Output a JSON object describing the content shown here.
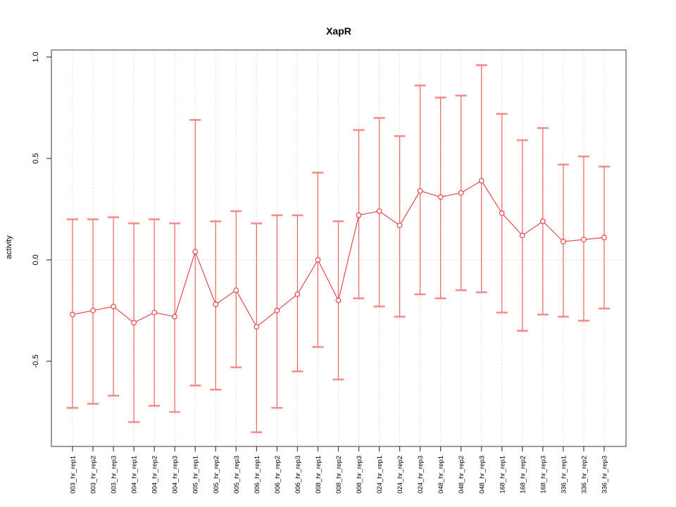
{
  "title": "XapR",
  "chart_data": {
    "type": "line",
    "title": "XapR",
    "xlabel": "",
    "ylabel": "activity",
    "ylim": [
      -0.92,
      1.04
    ],
    "yticks": [
      "1.0",
      "0.5",
      "0.0",
      "-0.5"
    ],
    "ytick_values": [
      1.0,
      0.5,
      0.0,
      -0.5
    ],
    "legend": "none",
    "grid": "vertical dashed gridline at every category; dotted horizontal line at y=0",
    "marker": "open-circle",
    "error_bars": true,
    "colors": {
      "series": "#e63939",
      "error_line": "rgba(232,60,60,0.8)",
      "error_cap": "rgba(246,130,130,0.9)",
      "gridline": "#dcdcdc",
      "zero_line": "#d8d8d8",
      "frame": "#7a7a7a",
      "tick": "#404040",
      "text": "#000000"
    },
    "categories": [
      "003_hr_rep1",
      "003_hr_rep2",
      "003_hr_rep3",
      "004_hr_rep1",
      "004_hr_rep2",
      "004_hr_rep3",
      "005_hr_rep1",
      "005_hr_rep2",
      "005_hr_rep3",
      "006_hr_rep1",
      "006_hr_rep2",
      "006_hr_rep3",
      "008_hr_rep1",
      "008_hr_rep2",
      "008_hr_rep3",
      "024_hr_rep1",
      "024_hr_rep2",
      "024_hr_rep3",
      "048_hr_rep1",
      "048_hr_rep2",
      "048_hr_rep3",
      "168_hr_rep1",
      "168_hr_rep2",
      "168_hr_rep3",
      "336_hr_rep1",
      "336_hr_rep2",
      "336_hr_rep3"
    ],
    "values": [
      -0.27,
      -0.25,
      -0.23,
      -0.31,
      -0.26,
      -0.28,
      0.04,
      -0.22,
      -0.15,
      -0.33,
      -0.25,
      -0.17,
      0.0,
      -0.2,
      0.22,
      0.24,
      0.17,
      0.34,
      0.31,
      0.33,
      0.39,
      0.23,
      0.12,
      0.19,
      0.09,
      0.1,
      0.11
    ],
    "error_low": [
      -0.73,
      -0.71,
      -0.67,
      -0.8,
      -0.72,
      -0.75,
      -0.62,
      -0.64,
      -0.53,
      -0.85,
      -0.73,
      -0.55,
      -0.43,
      -0.59,
      -0.19,
      -0.23,
      -0.28,
      -0.17,
      -0.19,
      -0.15,
      -0.16,
      -0.26,
      -0.35,
      -0.27,
      -0.28,
      -0.3,
      -0.24
    ],
    "error_high": [
      0.2,
      0.2,
      0.21,
      0.18,
      0.2,
      0.18,
      0.69,
      0.19,
      0.24,
      0.18,
      0.22,
      0.22,
      0.43,
      0.19,
      0.64,
      0.7,
      0.61,
      0.86,
      0.8,
      0.81,
      0.96,
      0.72,
      0.59,
      0.65,
      0.47,
      0.51,
      0.46
    ]
  }
}
